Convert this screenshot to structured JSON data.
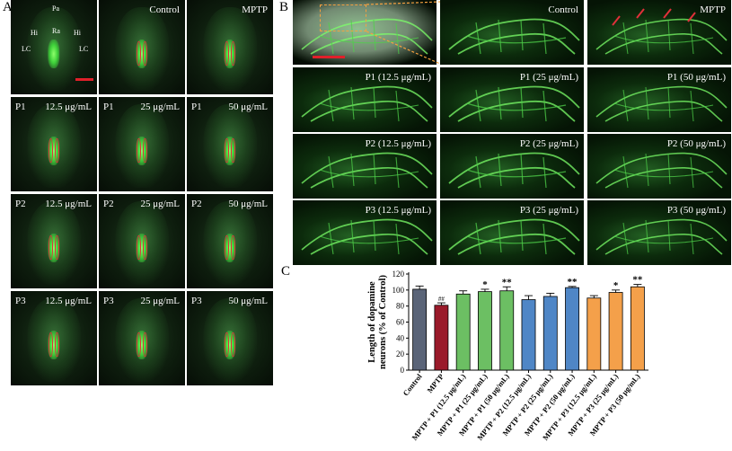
{
  "panels": {
    "a_letter": "A",
    "b_letter": "B",
    "c_letter": "C"
  },
  "panel_a": {
    "annotations": {
      "pa": "Pa",
      "ra": "Ra",
      "hi_left": "Hi",
      "hi_right": "Hi",
      "lc_left": "LC",
      "lc_right": "LC"
    },
    "rows": [
      {
        "tiles": [
          {
            "left": "",
            "right": ""
          },
          {
            "left": "",
            "right": "Control"
          },
          {
            "left": "",
            "right": "MPTP"
          }
        ]
      },
      {
        "tiles": [
          {
            "left": "P1",
            "right": "12.5 μg/mL"
          },
          {
            "left": "P1",
            "right": "25 μg/mL"
          },
          {
            "left": "P1",
            "right": "50 μg/mL"
          }
        ]
      },
      {
        "tiles": [
          {
            "left": "P2",
            "right": "12.5 μg/mL"
          },
          {
            "left": "P2",
            "right": "25 μg/mL"
          },
          {
            "left": "P2",
            "right": "50 μg/mL"
          }
        ]
      },
      {
        "tiles": [
          {
            "left": "P3",
            "right": "12.5 μg/mL"
          },
          {
            "left": "P3",
            "right": "25 μg/mL"
          },
          {
            "left": "P3",
            "right": "50 μg/mL"
          }
        ]
      }
    ]
  },
  "panel_b": {
    "rows": [
      {
        "tiles": [
          "",
          "Control",
          "MPTP"
        ]
      },
      {
        "tiles": [
          "P1 (12.5 μg/mL)",
          "P1 (25 μg/mL)",
          "P1 (50 μg/mL)"
        ]
      },
      {
        "tiles": [
          "P2 (12.5 μg/mL)",
          "P2 (25 μg/mL)",
          "P2 (50 μg/mL)"
        ]
      },
      {
        "tiles": [
          "P3 (12.5 μg/mL)",
          "P3 (25 μg/mL)",
          "P3 (50 μg/mL)"
        ]
      }
    ]
  },
  "chart_data": {
    "type": "bar",
    "ylabel": "Length of dopamine neurons (% of Control)",
    "xlabel": "",
    "ylim": [
      0,
      120
    ],
    "yticks": [
      0,
      20,
      40,
      60,
      80,
      100,
      120
    ],
    "categories": [
      "Control",
      "MPTP",
      "MPTP + P1 (12.5 μg/mL)",
      "MPTP + P1 (25 μg/mL)",
      "MPTP + P1 (50 μg/mL)",
      "MPTP + P2 (12.5 μg/mL)",
      "MPTP + P2 (25 μg/mL)",
      "MPTP + P2 (50 μg/mL)",
      "MPTP + P3 (12.5 μg/mL)",
      "MPTP + P3 (25 μg/mL)",
      "MPTP + P3 (50 μg/mL)"
    ],
    "values": [
      101,
      81,
      95,
      98,
      99,
      88,
      92,
      103,
      90,
      97,
      104
    ],
    "errors": [
      4,
      3,
      4,
      3,
      5,
      5,
      4,
      1.5,
      3,
      3,
      3
    ],
    "significance": [
      "",
      "##",
      "",
      "*",
      "**",
      "",
      "",
      "**",
      "",
      "*",
      "**"
    ],
    "colors": [
      "#5a6478",
      "#9a1a2a",
      "#6cbf63",
      "#6cbf63",
      "#6cbf63",
      "#4f86c6",
      "#4f86c6",
      "#4f86c6",
      "#f4a04a",
      "#f4a04a",
      "#f4a04a"
    ]
  }
}
